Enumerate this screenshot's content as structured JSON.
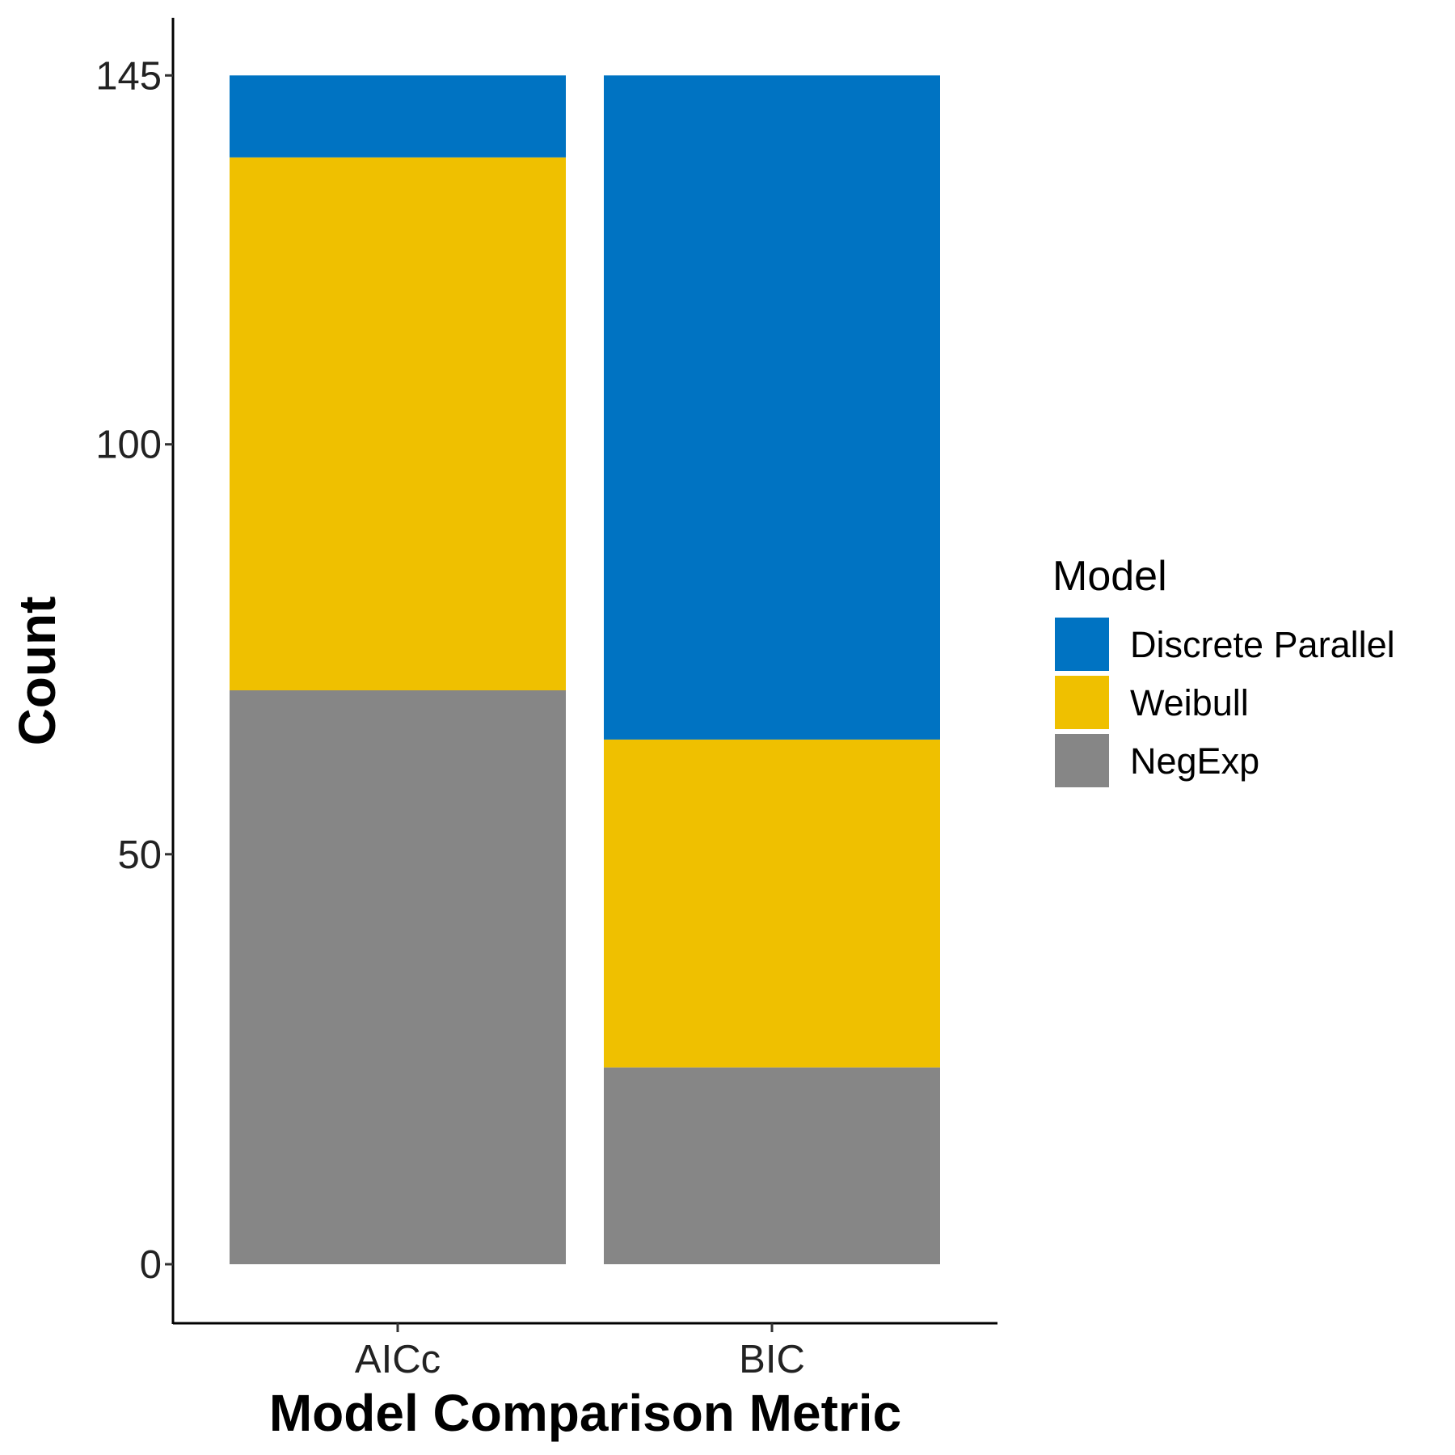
{
  "chart_data": {
    "type": "bar",
    "stacked": true,
    "categories": [
      "AICc",
      "BIC"
    ],
    "series": [
      {
        "name": "NegExp",
        "color": "#868686",
        "values": [
          70,
          24
        ]
      },
      {
        "name": "Weibull",
        "color": "#EFC000",
        "values": [
          65,
          40
        ]
      },
      {
        "name": "Discrete Parallel",
        "color": "#0073C2",
        "values": [
          10,
          81
        ]
      }
    ],
    "xlabel": "Model Comparison Metric",
    "ylabel": "Count",
    "yticks": [
      0,
      50,
      100,
      145
    ],
    "ylim": [
      -7.25,
      152.25
    ],
    "grid": false,
    "legend": {
      "title": "Model",
      "position": "right",
      "order": [
        "Discrete Parallel",
        "Weibull",
        "NegExp"
      ]
    }
  }
}
